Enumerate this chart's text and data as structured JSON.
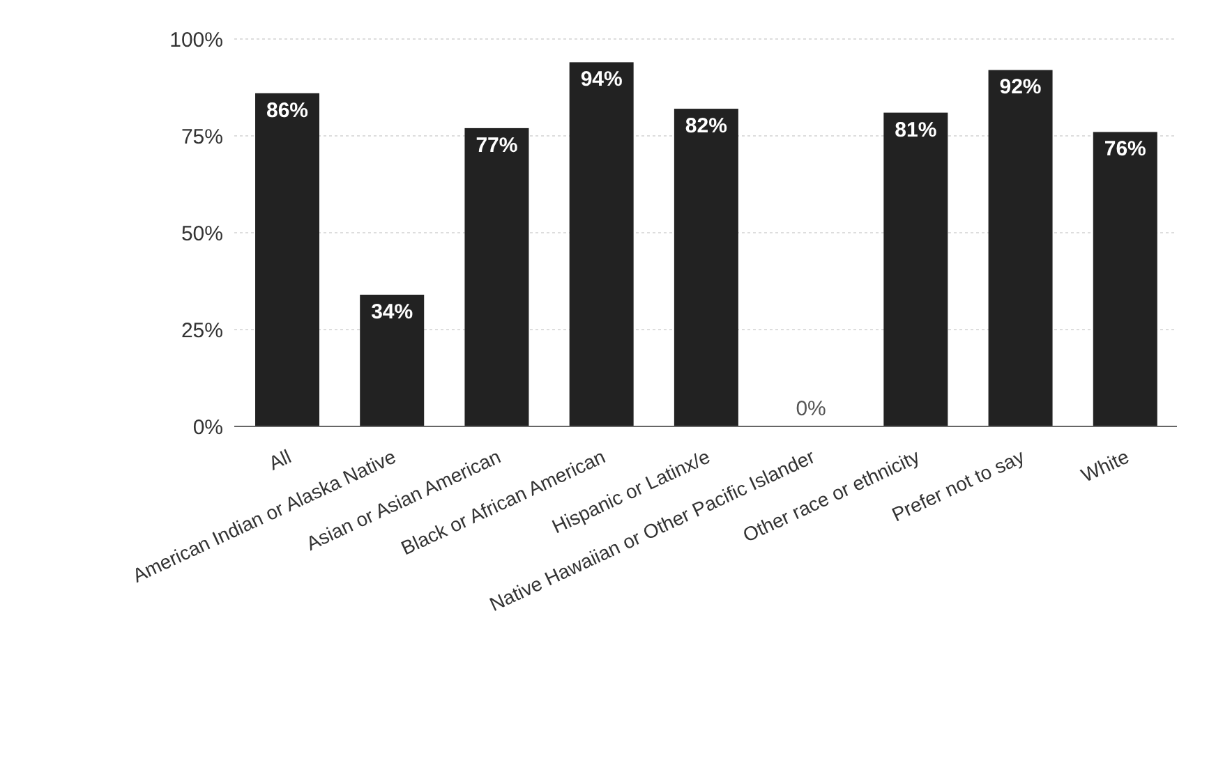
{
  "chart_data": {
    "type": "bar",
    "categories": [
      "All",
      "American Indian or Alaska Native",
      "Asian or Asian American",
      "Black or African American",
      "Hispanic or Latinx/e",
      "Native Hawaiian or Other Pacific Islander",
      "Other race or ethnicity",
      "Prefer not to say",
      "White"
    ],
    "values": [
      86,
      34,
      77,
      94,
      82,
      0,
      81,
      92,
      76
    ],
    "value_labels": [
      "86%",
      "34%",
      "77%",
      "94%",
      "82%",
      "0%",
      "81%",
      "92%",
      "76%"
    ],
    "color": "#222222",
    "ylim": [
      0,
      100
    ],
    "yticks": [
      {
        "value": 0,
        "label": "0%"
      },
      {
        "value": 25,
        "label": "25%"
      },
      {
        "value": 50,
        "label": "50%"
      },
      {
        "value": 75,
        "label": "75%"
      },
      {
        "value": 100,
        "label": "100%"
      }
    ],
    "grid": "y"
  }
}
